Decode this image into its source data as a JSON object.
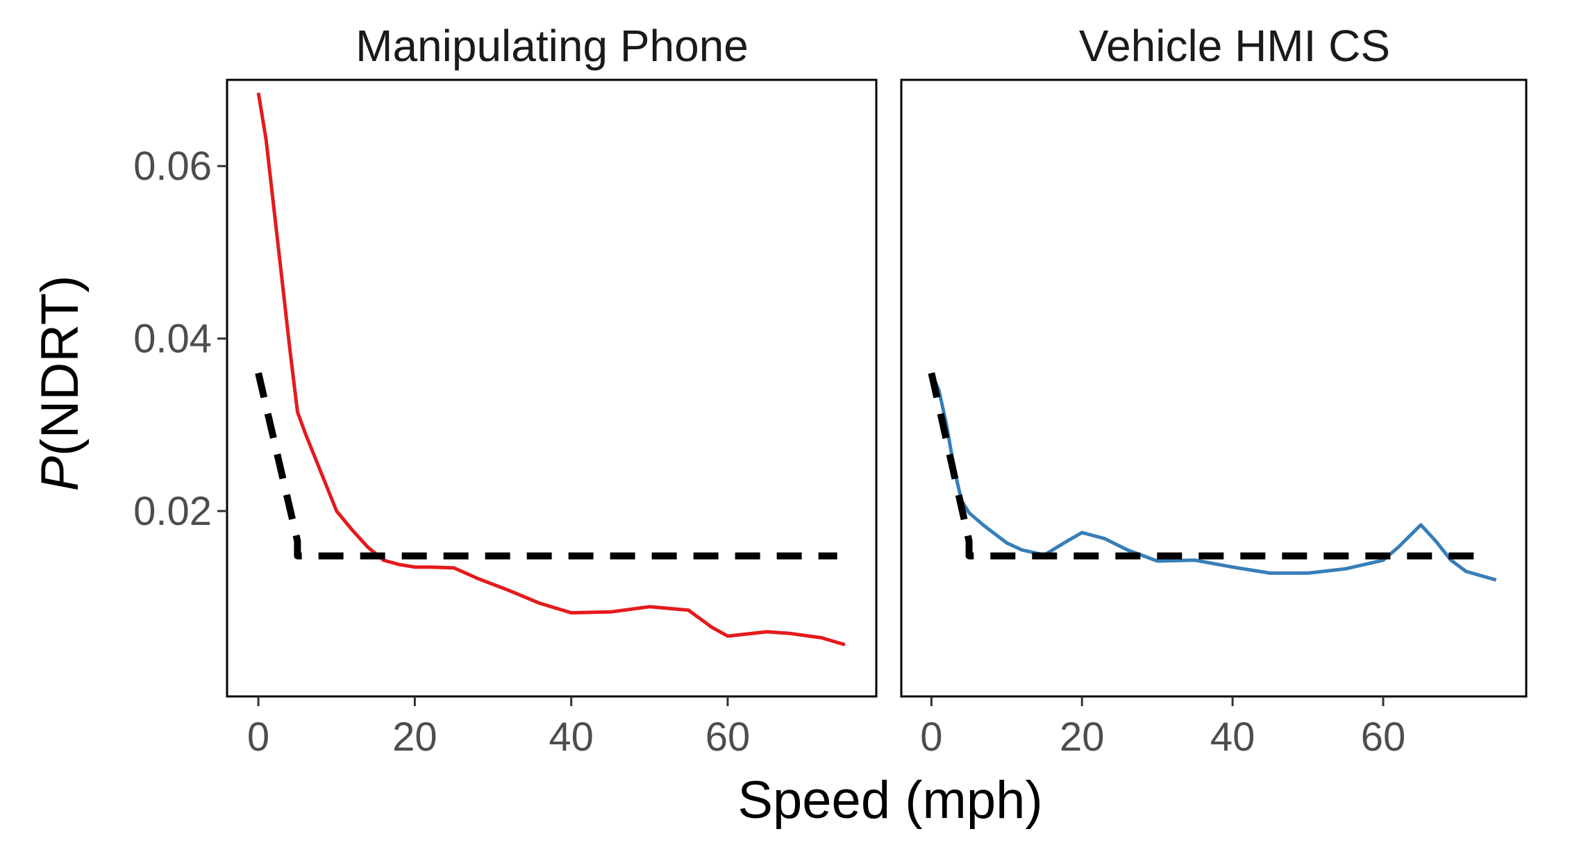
{
  "chart_data": {
    "type": "line",
    "xlabel": "Speed (mph)",
    "ylabel_italic": "P",
    "ylabel_rest": "(NDRT)",
    "xlim": [
      -4,
      79
    ],
    "ylim": [
      -0.0015,
      0.07
    ],
    "xticks": [
      0,
      20,
      40,
      60
    ],
    "xtick_labels": [
      "0",
      "20",
      "40",
      "60"
    ],
    "yticks": [
      0.02,
      0.04,
      0.06
    ],
    "ytick_labels": [
      "0.02",
      "0.04",
      "0.06"
    ],
    "panels": [
      {
        "title": "Manipulating Phone",
        "series": [
          {
            "name": "observed",
            "color": "#e41a1c",
            "style": "solid",
            "x": [
              0,
              1,
              2,
              3,
              4,
              5,
              6,
              8,
              10,
              12,
              14,
              16,
              18,
              20,
              22,
              25,
              28,
              32,
              36,
              40,
              45,
              50,
              55,
              58,
              60,
              62,
              65,
              68,
              72,
              75
            ],
            "y": [
              0.0685,
              0.063,
              0.055,
              0.047,
              0.039,
              0.0315,
              0.029,
              0.0245,
              0.02,
              0.0178,
              0.0158,
              0.0143,
              0.0138,
              0.0135,
              0.0135,
              0.0134,
              0.0122,
              0.0108,
              0.0093,
              0.0082,
              0.0083,
              0.0089,
              0.0085,
              0.0065,
              0.0055,
              0.0057,
              0.006,
              0.0058,
              0.0053,
              0.0045
            ]
          },
          {
            "name": "reference",
            "color": "#000000",
            "style": "dashed",
            "x": [
              0,
              5,
              5,
              74
            ],
            "y": [
              0.036,
              0.0165,
              0.0148,
              0.0148
            ]
          }
        ]
      },
      {
        "title": "Vehicle HMI CS",
        "series": [
          {
            "name": "observed",
            "color": "#377eb8",
            "style": "solid",
            "x": [
              0,
              1,
              2,
              3,
              4,
              5,
              7,
              10,
              12,
              15,
              18,
              20,
              23,
              26,
              30,
              35,
              40,
              45,
              50,
              55,
              60,
              62,
              65,
              67,
              69,
              71,
              75
            ],
            "y": [
              0.036,
              0.034,
              0.03,
              0.025,
              0.0212,
              0.0198,
              0.0183,
              0.0163,
              0.0155,
              0.0149,
              0.0165,
              0.0175,
              0.0168,
              0.0155,
              0.0142,
              0.0143,
              0.0135,
              0.0128,
              0.0128,
              0.0133,
              0.0143,
              0.0158,
              0.0184,
              0.0165,
              0.0143,
              0.013,
              0.012
            ]
          },
          {
            "name": "reference",
            "color": "#000000",
            "style": "dashed",
            "x": [
              0,
              5,
              5,
              74
            ],
            "y": [
              0.036,
              0.0165,
              0.0148,
              0.0148
            ]
          }
        ]
      }
    ]
  }
}
